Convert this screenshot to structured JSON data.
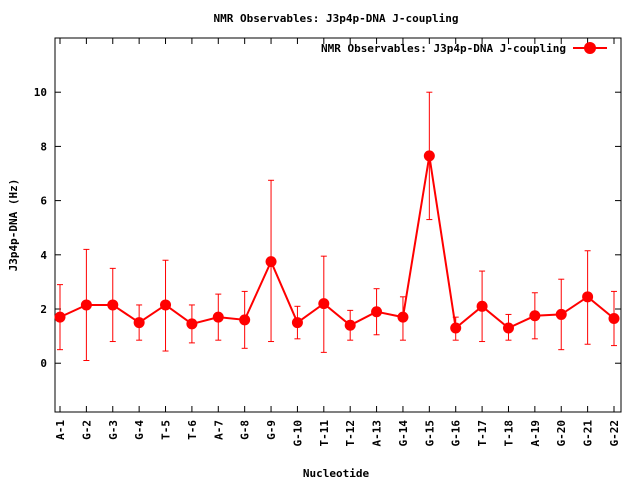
{
  "chart_data": {
    "type": "line",
    "title": "NMR Observables: J3p4p-DNA J-coupling",
    "xlabel": "Nucleotide",
    "ylabel": "J3p4p-DNA (Hz)",
    "ylim": [
      -1.8,
      12
    ],
    "yticks": [
      0,
      2,
      4,
      6,
      8,
      10
    ],
    "grid": false,
    "legend_position": "top-right",
    "categories": [
      "A-1",
      "G-2",
      "G-3",
      "G-4",
      "T-5",
      "T-6",
      "A-7",
      "G-8",
      "G-9",
      "G-10",
      "T-11",
      "T-12",
      "A-13",
      "G-14",
      "G-15",
      "G-16",
      "T-17",
      "T-18",
      "A-19",
      "G-20",
      "G-21",
      "G-22"
    ],
    "series": [
      {
        "name": "NMR Observables: J3p4p-DNA J-coupling",
        "color": "#ff0000",
        "values": [
          1.7,
          2.15,
          2.15,
          1.5,
          2.15,
          1.45,
          1.7,
          1.6,
          3.75,
          1.5,
          2.2,
          1.4,
          1.9,
          1.7,
          7.65,
          1.3,
          2.1,
          1.3,
          1.75,
          1.8,
          2.45,
          1.65
        ],
        "err_low": [
          0.5,
          0.1,
          0.8,
          0.85,
          0.45,
          0.75,
          0.85,
          0.55,
          0.8,
          0.9,
          0.4,
          0.85,
          1.05,
          0.85,
          5.3,
          0.85,
          0.8,
          0.85,
          0.9,
          0.5,
          0.7,
          0.65
        ],
        "err_high": [
          2.9,
          4.2,
          3.5,
          2.15,
          3.8,
          2.15,
          2.55,
          2.65,
          6.75,
          2.1,
          3.95,
          1.95,
          2.75,
          2.45,
          10.0,
          1.7,
          3.4,
          1.8,
          2.6,
          3.1,
          4.15,
          2.65
        ]
      }
    ]
  }
}
